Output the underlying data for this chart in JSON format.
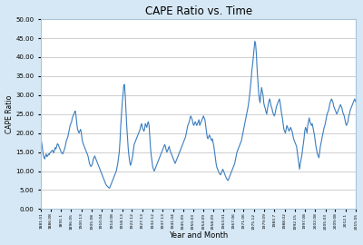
{
  "title": "CAPE Ratio vs. Time",
  "xlabel": "Year and Month",
  "ylabel": "CAPE Ratio",
  "ylim": [
    0,
    50
  ],
  "yticks": [
    0,
    5,
    10,
    15,
    20,
    25,
    30,
    35,
    40,
    45,
    50
  ],
  "line_color": "#3A7DBF",
  "background_color": "#D6E8F5",
  "plot_bg_color": "#FFFFFF",
  "border_color": "#A8C4D8",
  "grid_color": "#BBBBBB",
  "cape_data": [
    18.4,
    17.2,
    15.8,
    14.3,
    13.5,
    13.2,
    14.1,
    14.5,
    13.8,
    14.0,
    14.5,
    14.3,
    14.8,
    15.0,
    15.2,
    15.5,
    15.3,
    14.8,
    15.5,
    16.2,
    15.8,
    16.5,
    17.2,
    17.0,
    16.5,
    16.0,
    15.5,
    15.0,
    14.8,
    14.5,
    15.0,
    15.5,
    16.0,
    17.0,
    18.0,
    18.5,
    19.0,
    20.0,
    21.0,
    22.0,
    22.5,
    23.0,
    24.0,
    24.5,
    25.0,
    25.5,
    25.8,
    24.5,
    22.5,
    21.0,
    20.5,
    20.0,
    20.5,
    21.0,
    20.2,
    18.5,
    17.5,
    17.0,
    16.5,
    16.0,
    15.5,
    15.0,
    14.5,
    14.0,
    13.0,
    12.0,
    11.5,
    11.2,
    11.5,
    12.0,
    13.0,
    13.5,
    14.0,
    13.5,
    13.0,
    12.5,
    12.0,
    11.5,
    11.0,
    10.5,
    10.0,
    9.5,
    9.0,
    8.5,
    8.0,
    7.5,
    7.0,
    6.5,
    6.2,
    6.0,
    5.8,
    5.6,
    5.5,
    6.0,
    6.5,
    7.0,
    7.5,
    8.0,
    8.5,
    9.0,
    9.5,
    10.0,
    11.0,
    12.0,
    13.5,
    15.0,
    18.0,
    22.0,
    25.0,
    28.0,
    30.0,
    32.5,
    32.8,
    30.0,
    26.0,
    22.0,
    19.0,
    16.0,
    14.0,
    12.5,
    11.5,
    12.0,
    13.0,
    14.0,
    15.5,
    17.0,
    17.5,
    18.0,
    18.5,
    19.0,
    19.5,
    20.0,
    20.5,
    21.0,
    22.0,
    22.5,
    21.5,
    21.0,
    20.5,
    21.0,
    22.5,
    22.0,
    21.5,
    22.5,
    23.0,
    22.0,
    19.0,
    16.0,
    14.0,
    12.5,
    11.0,
    10.5,
    10.0,
    10.5,
    11.0,
    11.5,
    12.0,
    12.5,
    13.0,
    13.5,
    14.0,
    14.5,
    15.0,
    15.5,
    16.0,
    16.5,
    17.0,
    16.5,
    15.5,
    15.0,
    15.5,
    16.0,
    16.5,
    15.5,
    15.0,
    14.5,
    14.0,
    13.5,
    13.0,
    12.5,
    12.0,
    12.5,
    13.0,
    13.5,
    14.0,
    14.5,
    15.0,
    15.5,
    16.0,
    16.5,
    17.0,
    17.5,
    18.0,
    18.5,
    19.0,
    20.0,
    21.0,
    22.0,
    22.5,
    23.0,
    24.0,
    24.5,
    24.0,
    23.5,
    22.5,
    22.0,
    22.5,
    23.0,
    22.5,
    22.0,
    22.5,
    23.0,
    23.5,
    22.0,
    22.5,
    23.0,
    23.5,
    24.0,
    24.5,
    24.0,
    23.5,
    22.0,
    20.5,
    19.0,
    18.5,
    19.0,
    19.5,
    19.0,
    18.5,
    18.0,
    18.5,
    17.5,
    16.5,
    15.0,
    13.5,
    12.0,
    11.0,
    10.5,
    10.0,
    9.5,
    9.2,
    9.0,
    9.5,
    10.0,
    10.5,
    10.0,
    9.5,
    9.0,
    8.5,
    8.0,
    7.8,
    7.5,
    8.0,
    8.5,
    9.0,
    9.5,
    10.0,
    10.5,
    11.0,
    11.5,
    12.0,
    13.0,
    14.0,
    15.0,
    15.5,
    16.0,
    16.5,
    17.0,
    17.5,
    18.0,
    19.0,
    20.0,
    21.0,
    22.0,
    23.0,
    24.0,
    25.0,
    26.0,
    27.0,
    28.5,
    30.0,
    32.0,
    34.0,
    36.5,
    38.0,
    40.0,
    42.0,
    44.2,
    43.5,
    41.0,
    37.0,
    34.0,
    31.0,
    29.0,
    28.0,
    30.0,
    32.0,
    31.0,
    30.0,
    28.0,
    27.0,
    26.5,
    25.5,
    25.0,
    26.5,
    27.5,
    28.5,
    29.0,
    28.0,
    27.0,
    26.5,
    25.5,
    25.0,
    24.5,
    25.0,
    26.0,
    27.0,
    27.5,
    28.0,
    28.5,
    29.0,
    28.0,
    26.5,
    25.0,
    24.0,
    22.5,
    21.0,
    20.5,
    20.0,
    21.0,
    22.0,
    21.5,
    21.0,
    20.5,
    21.0,
    21.5,
    21.0,
    20.5,
    19.5,
    18.5,
    18.0,
    17.5,
    17.0,
    16.5,
    15.0,
    13.5,
    12.0,
    10.5,
    12.0,
    13.0,
    14.0,
    15.5,
    17.0,
    18.5,
    20.5,
    21.5,
    21.0,
    20.0,
    22.0,
    23.0,
    24.0,
    23.0,
    22.5,
    22.0,
    22.5,
    21.5,
    20.5,
    19.5,
    18.0,
    16.5,
    15.5,
    14.5,
    14.0,
    13.5,
    15.0,
    16.5,
    17.5,
    18.5,
    19.5,
    20.5,
    21.5,
    22.0,
    23.0,
    24.0,
    25.0,
    25.5,
    26.0,
    27.0,
    28.0,
    28.5,
    29.0,
    28.5,
    28.0,
    27.0,
    26.5,
    26.0,
    25.5,
    25.0,
    25.5,
    26.0,
    26.5,
    27.0,
    27.5,
    27.0,
    26.5,
    25.5,
    25.0,
    24.5,
    23.5,
    22.5,
    22.0,
    22.5,
    23.0,
    24.5,
    25.0,
    26.0,
    26.5,
    27.0,
    27.5,
    28.0,
    28.5,
    29.0,
    28.5,
    28.0
  ],
  "x_tick_labels": [
    "1881.01",
    "1886.08",
    "1891.1",
    "1896.05",
    "1900.13",
    "1905.08",
    "1910.04",
    "1914.08",
    "1918.13",
    "1922.12",
    "1927.13",
    "1932.12",
    "1937.13",
    "1941.04",
    "1945.09",
    "1950.03",
    "1954.09",
    "1958.09",
    "1963.01",
    "1967.06",
    "1971.06",
    "1975.12",
    "1979.09",
    "1983.7",
    "1988.02",
    "1992.15",
    "1997.08",
    "2002.08",
    "2005.03",
    "2009.08",
    "2012.1",
    "2015.05"
  ]
}
